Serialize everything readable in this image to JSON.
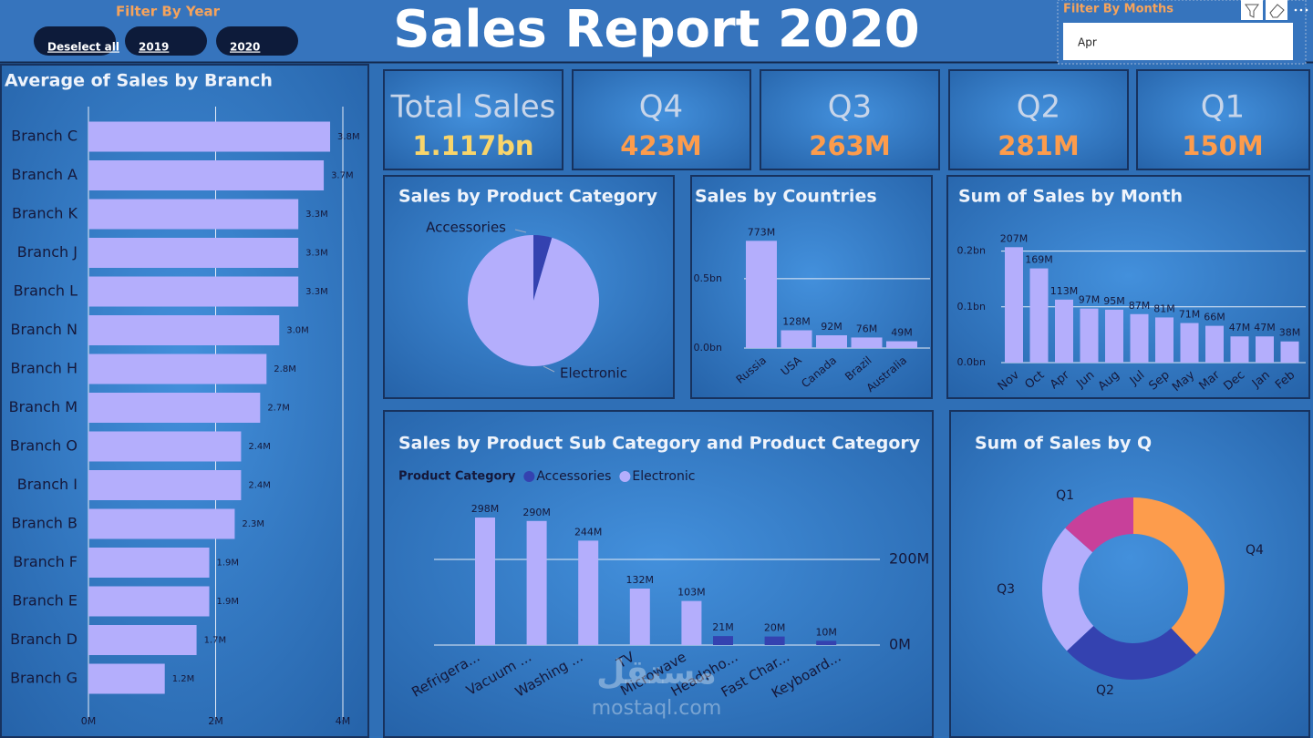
{
  "header": {
    "title": "Sales Report 2020"
  },
  "filters": {
    "year": {
      "label": "Filter By Year",
      "options": [
        "Deselect all",
        "2019",
        "2020"
      ]
    },
    "months": {
      "label": "Filter By Months",
      "selected": "Apr"
    }
  },
  "kpis": [
    {
      "label": "Total Sales",
      "value": "1.117bn"
    },
    {
      "label": "Q4",
      "value": "423M"
    },
    {
      "label": "Q3",
      "value": "263M"
    },
    {
      "label": "Q2",
      "value": "281M"
    },
    {
      "label": "Q1",
      "value": "150M"
    }
  ],
  "watermark": {
    "logo": "مستقل",
    "site": "mostaql.com"
  },
  "chart_data": [
    {
      "type": "hbar",
      "title": "Average of Sales by Branch",
      "categories": [
        "Branch C",
        "Branch A",
        "Branch K",
        "Branch J",
        "Branch L",
        "Branch N",
        "Branch H",
        "Branch M",
        "Branch O",
        "Branch I",
        "Branch B",
        "Branch F",
        "Branch E",
        "Branch D",
        "Branch G"
      ],
      "values": [
        3.8,
        3.7,
        3.3,
        3.3,
        3.3,
        3.0,
        2.8,
        2.7,
        2.4,
        2.4,
        2.3,
        1.9,
        1.9,
        1.7,
        1.2
      ],
      "value_labels": [
        "3.8M",
        "3.7M",
        "3.3M",
        "3.3M",
        "3.3M",
        "3.0M",
        "2.8M",
        "2.7M",
        "2.4M",
        "2.4M",
        "2.3M",
        "1.9M",
        "1.9M",
        "1.7M",
        "1.2M"
      ],
      "color": "#b4aefc",
      "xlim": [
        0,
        4
      ],
      "xticks": [
        {
          "value": 0,
          "label": "0M"
        },
        {
          "value": 2,
          "label": "2M"
        },
        {
          "value": 4,
          "label": "4M"
        }
      ],
      "grid": true
    },
    {
      "type": "pie",
      "title": "Sales by Product Category",
      "categories": [
        "Accessories",
        "Electronic"
      ],
      "values": [
        51,
        1067
      ],
      "colors": [
        "#3442b0",
        "#b4aefc"
      ]
    },
    {
      "type": "bar",
      "title": "Sales by Countries",
      "categories": [
        "Russia",
        "USA",
        "Canada",
        "Brazil",
        "Australia"
      ],
      "values": [
        0.773,
        0.128,
        0.092,
        0.076,
        0.049
      ],
      "value_labels": [
        "773M",
        "128M",
        "92M",
        "76M",
        "49M"
      ],
      "color": "#b4aefc",
      "ylim": [
        0,
        0.9
      ],
      "yticks": [
        {
          "value": 0,
          "label": "0.0bn"
        },
        {
          "value": 0.5,
          "label": "0.5bn"
        }
      ],
      "grid": true
    },
    {
      "type": "bar",
      "title": "Sum of Sales by Month",
      "categories": [
        "Nov",
        "Oct",
        "Apr",
        "Jun",
        "Aug",
        "Jul",
        "Sep",
        "May",
        "Mar",
        "Dec",
        "Jan",
        "Feb"
      ],
      "values": [
        0.207,
        0.169,
        0.113,
        0.097,
        0.095,
        0.087,
        0.081,
        0.071,
        0.066,
        0.047,
        0.047,
        0.038
      ],
      "value_labels": [
        "207M",
        "169M",
        "113M",
        "97M",
        "95M",
        "87M",
        "81M",
        "71M",
        "66M",
        "47M",
        "47M",
        "38M"
      ],
      "color": "#b4aefc",
      "ylim": [
        0,
        0.25
      ],
      "yticks": [
        {
          "value": 0,
          "label": "0.0bn"
        },
        {
          "value": 0.1,
          "label": "0.1bn"
        },
        {
          "value": 0.2,
          "label": "0.2bn"
        }
      ],
      "grid": true
    },
    {
      "type": "bar",
      "title": "Sales by Product Sub Category and Product Category",
      "legend_title": "Product Category",
      "categories": [
        "Refrigera...",
        "Vacuum ...",
        "Washing ...",
        "TV",
        "Microwave",
        "Headpho...",
        "Fast Char...",
        "Keyboard..."
      ],
      "series": [
        {
          "name": "Accessories",
          "color": "#3442b0",
          "values": [
            null,
            null,
            null,
            null,
            null,
            21,
            20,
            10
          ],
          "value_labels": [
            null,
            null,
            null,
            null,
            null,
            "21M",
            "20M",
            "10M"
          ]
        },
        {
          "name": "Electronic",
          "color": "#b4aefc",
          "values": [
            298,
            290,
            244,
            132,
            103,
            null,
            null,
            null
          ],
          "value_labels": [
            "298M",
            "290M",
            "244M",
            "132M",
            "103M",
            null,
            null,
            null
          ]
        }
      ],
      "ylim": [
        0,
        330
      ],
      "yticks": [
        {
          "value": 0,
          "label": "0M"
        },
        {
          "value": 200,
          "label": "200M"
        }
      ],
      "grid": true
    },
    {
      "type": "donut",
      "title": "Sum of Sales by Q",
      "categories": [
        "Q4",
        "Q2",
        "Q3",
        "Q1"
      ],
      "values": [
        423,
        281,
        263,
        150
      ],
      "colors": [
        "#fd9c4c",
        "#3442b0",
        "#b4aefc",
        "#c8409a"
      ]
    }
  ]
}
